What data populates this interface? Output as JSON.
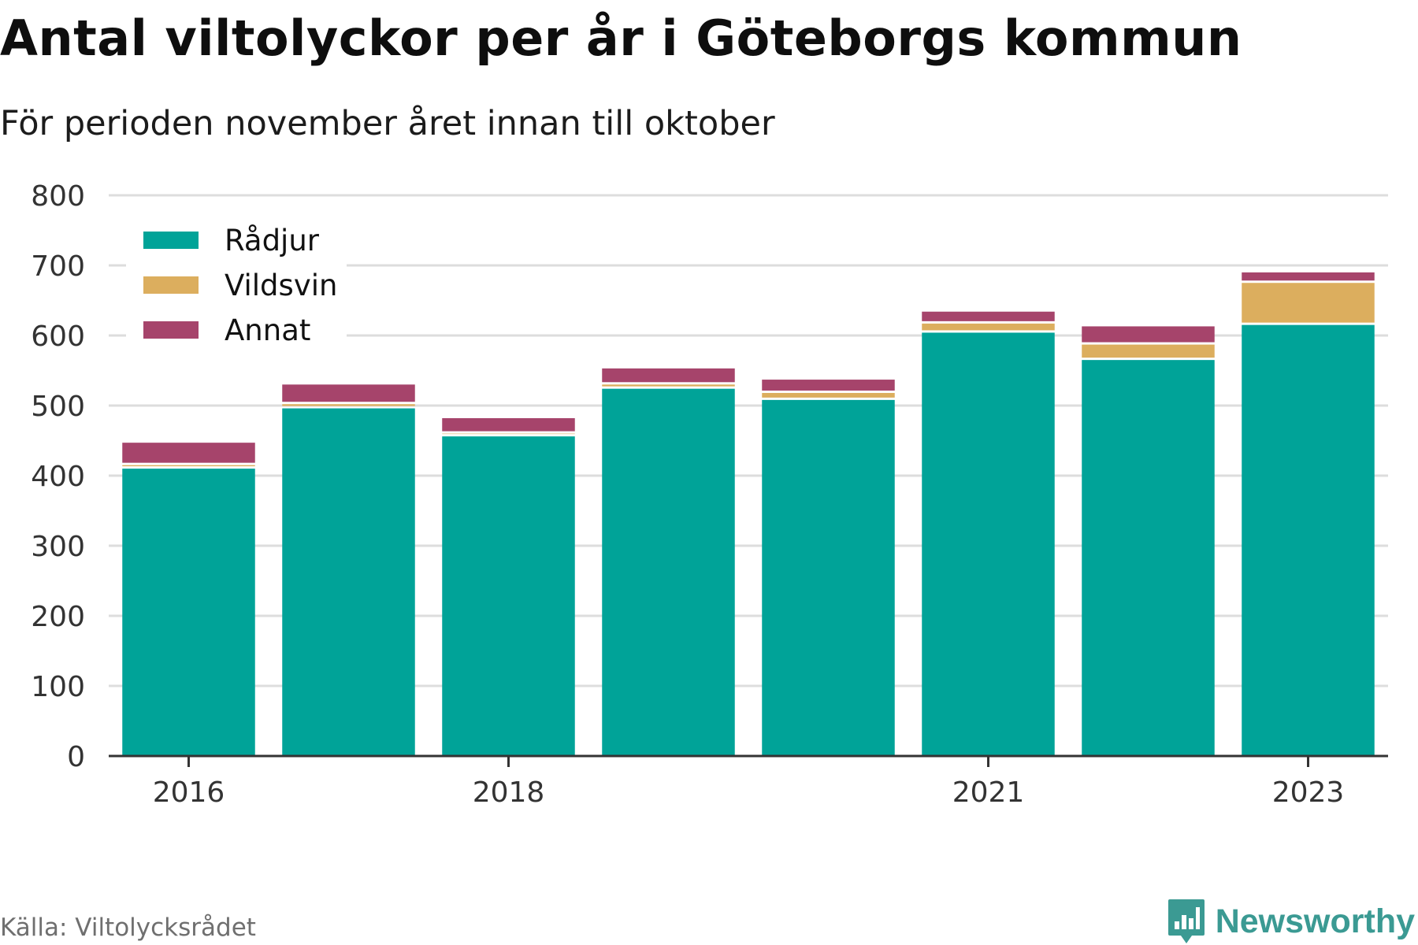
{
  "header": {
    "title": "Antal viltolyckor per år i Göteborgs kommun",
    "subtitle": "För perioden november året innan till oktober"
  },
  "footer": {
    "source": "Källa: Viltolycksrådet",
    "brand": "Newsworthy",
    "brand_icon": "bar-chart-badge-icon"
  },
  "chart_data": {
    "type": "bar",
    "stacked": true,
    "categories": [
      "2016",
      "2017",
      "2018",
      "2019",
      "2020",
      "2021",
      "2022",
      "2023"
    ],
    "x_tick_labels": [
      "2016",
      "",
      "2018",
      "",
      "",
      "2021",
      "",
      "2023"
    ],
    "series": [
      {
        "name": "Rådjur",
        "color": "#00a398",
        "values": [
          410,
          496,
          456,
          524,
          508,
          604,
          565,
          615
        ]
      },
      {
        "name": "Vildsvin",
        "color": "#dcae5e",
        "values": [
          5,
          6,
          4,
          6,
          10,
          13,
          22,
          60
        ]
      },
      {
        "name": "Annat",
        "color": "#a6446b",
        "values": [
          32,
          28,
          22,
          23,
          19,
          17,
          26,
          15
        ]
      }
    ],
    "ylim": [
      0,
      800
    ],
    "yticks": [
      0,
      100,
      200,
      300,
      400,
      500,
      600,
      700,
      800
    ],
    "grid": true,
    "legend_position": "top-left",
    "xlabel": "",
    "ylabel": ""
  }
}
